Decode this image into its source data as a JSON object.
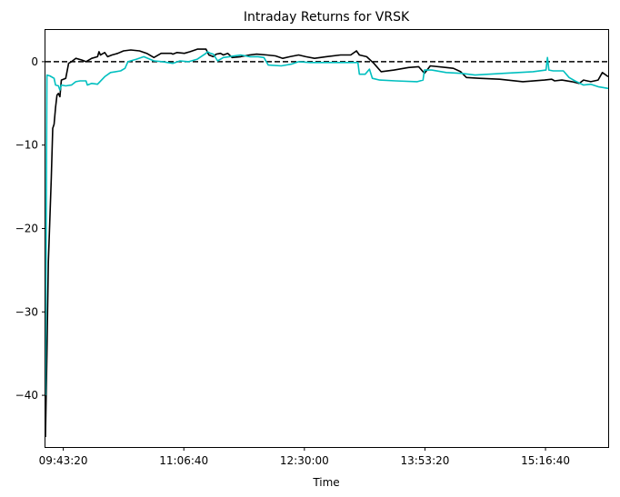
{
  "chart_data": {
    "type": "line",
    "title": "Intraday Returns for VRSK",
    "xlabel": "Time",
    "ylabel": "",
    "xlim": [
      "09:31:00",
      "16:00:00"
    ],
    "ylim": [
      -46.2,
      3.8
    ],
    "x_ticks": [
      "09:43:20",
      "11:06:40",
      "12:30:00",
      "13:53:20",
      "15:16:40"
    ],
    "y_ticks": [
      0,
      -10,
      -20,
      -30,
      -40
    ],
    "y_tick_labels": [
      "0",
      "−10",
      "−20",
      "−30",
      "−40"
    ],
    "grid": false,
    "reference_line": {
      "y": 0,
      "style": "dashed",
      "color": "#000000"
    },
    "series": [
      {
        "color": "#000000",
        "points": [
          [
            "09:31:00",
            -45.0
          ],
          [
            "09:32:00",
            -35.0
          ],
          [
            "09:33:00",
            -24.0
          ],
          [
            "09:35:00",
            -14.0
          ],
          [
            "09:36:00",
            -8.0
          ],
          [
            "09:37:00",
            -7.5
          ],
          [
            "09:38:00",
            -5.5
          ],
          [
            "09:39:00",
            -4.0
          ],
          [
            "09:40:00",
            -3.8
          ],
          [
            "09:41:00",
            -4.2
          ],
          [
            "09:42:00",
            -2.2
          ],
          [
            "09:45:00",
            -2.0
          ],
          [
            "09:47:00",
            -0.2
          ],
          [
            "09:49:00",
            0.0
          ],
          [
            "09:52:00",
            0.4
          ],
          [
            "09:56:00",
            0.2
          ],
          [
            "09:59:00",
            0.0
          ],
          [
            "10:03:00",
            0.4
          ],
          [
            "10:07:00",
            0.6
          ],
          [
            "10:08:00",
            1.2
          ],
          [
            "10:09:00",
            0.8
          ],
          [
            "10:11:00",
            1.0
          ],
          [
            "10:12:00",
            1.1
          ],
          [
            "10:14:00",
            0.6
          ],
          [
            "10:17:00",
            0.8
          ],
          [
            "10:21:00",
            1.0
          ],
          [
            "10:25:00",
            1.3
          ],
          [
            "10:30:00",
            1.4
          ],
          [
            "10:36:00",
            1.3
          ],
          [
            "10:41:00",
            1.0
          ],
          [
            "10:46:00",
            0.5
          ],
          [
            "10:51:00",
            1.0
          ],
          [
            "10:58:00",
            1.0
          ],
          [
            "10:59:00",
            0.9
          ],
          [
            "11:02:00",
            1.1
          ],
          [
            "11:07:00",
            1.0
          ],
          [
            "11:11:00",
            1.2
          ],
          [
            "11:16:00",
            1.5
          ],
          [
            "11:22:00",
            1.5
          ],
          [
            "11:24:00",
            0.8
          ],
          [
            "11:27:00",
            0.6
          ],
          [
            "11:29:00",
            0.9
          ],
          [
            "11:32:00",
            1.0
          ],
          [
            "11:34:00",
            0.8
          ],
          [
            "11:37:00",
            1.0
          ],
          [
            "11:40:00",
            0.5
          ],
          [
            "11:46:00",
            0.6
          ],
          [
            "11:52:00",
            0.8
          ],
          [
            "11:57:00",
            0.9
          ],
          [
            "12:04:00",
            0.8
          ],
          [
            "12:10:00",
            0.7
          ],
          [
            "12:15:00",
            0.4
          ],
          [
            "12:20:00",
            0.6
          ],
          [
            "12:26:00",
            0.8
          ],
          [
            "12:31:00",
            0.6
          ],
          [
            "12:37:00",
            0.4
          ],
          [
            "12:45:00",
            0.6
          ],
          [
            "12:55:00",
            0.8
          ],
          [
            "13:02:00",
            0.8
          ],
          [
            "13:06:00",
            1.3
          ],
          [
            "13:08:00",
            0.8
          ],
          [
            "13:13:00",
            0.6
          ],
          [
            "13:18:00",
            -0.2
          ],
          [
            "13:23:00",
            -1.2
          ],
          [
            "13:32:00",
            -1.0
          ],
          [
            "13:42:00",
            -0.7
          ],
          [
            "13:49:00",
            -0.6
          ],
          [
            "13:53:00",
            -1.4
          ],
          [
            "13:57:00",
            -0.5
          ],
          [
            "14:08:00",
            -0.7
          ],
          [
            "14:13:00",
            -0.8
          ],
          [
            "14:18:00",
            -1.2
          ],
          [
            "14:22:00",
            -1.9
          ],
          [
            "14:31:00",
            -2.0
          ],
          [
            "14:45:00",
            -2.1
          ],
          [
            "15:01:00",
            -2.4
          ],
          [
            "15:16:00",
            -2.2
          ],
          [
            "15:21:00",
            -2.1
          ],
          [
            "15:23:00",
            -2.3
          ],
          [
            "15:28:00",
            -2.2
          ],
          [
            "15:35:00",
            -2.4
          ],
          [
            "15:40:00",
            -2.6
          ],
          [
            "15:43:00",
            -2.2
          ],
          [
            "15:48:00",
            -2.4
          ],
          [
            "15:53:00",
            -2.2
          ],
          [
            "15:56:00",
            -1.3
          ],
          [
            "16:00:00",
            -1.8
          ]
        ]
      },
      {
        "color": "#00BFBF",
        "points": [
          [
            "09:31:00",
            -40.0
          ],
          [
            "09:32:00",
            -1.6
          ],
          [
            "09:34:00",
            -1.7
          ],
          [
            "09:37:00",
            -2.0
          ],
          [
            "09:38:00",
            -2.8
          ],
          [
            "09:40:00",
            -2.9
          ],
          [
            "09:41:00",
            -3.4
          ],
          [
            "09:42:00",
            -2.8
          ],
          [
            "09:45:00",
            -2.9
          ],
          [
            "09:49:00",
            -2.8
          ],
          [
            "09:52:00",
            -2.4
          ],
          [
            "09:55:00",
            -2.3
          ],
          [
            "09:59:00",
            -2.3
          ],
          [
            "10:00:00",
            -2.8
          ],
          [
            "10:03:00",
            -2.6
          ],
          [
            "10:07:00",
            -2.7
          ],
          [
            "10:12:00",
            -1.8
          ],
          [
            "10:16:00",
            -1.3
          ],
          [
            "10:23:00",
            -1.1
          ],
          [
            "10:26:00",
            -0.8
          ],
          [
            "10:28:00",
            0.0
          ],
          [
            "10:34:00",
            0.3
          ],
          [
            "10:39:00",
            0.6
          ],
          [
            "10:46:00",
            0.1
          ],
          [
            "10:52:00",
            0.0
          ],
          [
            "10:59:00",
            -0.2
          ],
          [
            "11:04:00",
            0.1
          ],
          [
            "11:10:00",
            0.0
          ],
          [
            "11:16:00",
            0.3
          ],
          [
            "11:22:00",
            1.0
          ],
          [
            "11:23:00",
            1.2
          ],
          [
            "11:25:00",
            1.0
          ],
          [
            "11:27:00",
            0.9
          ],
          [
            "11:30:00",
            0.1
          ],
          [
            "11:34:00",
            0.5
          ],
          [
            "11:38:00",
            0.6
          ],
          [
            "11:46:00",
            0.8
          ],
          [
            "11:52:00",
            0.6
          ],
          [
            "11:58:00",
            0.6
          ],
          [
            "12:02:00",
            0.5
          ],
          [
            "12:05:00",
            -0.4
          ],
          [
            "12:14:00",
            -0.5
          ],
          [
            "12:21:00",
            -0.3
          ],
          [
            "12:26:00",
            0.0
          ],
          [
            "12:34:00",
            -0.1
          ],
          [
            "12:48:00",
            -0.1
          ],
          [
            "13:07:00",
            -0.1
          ],
          [
            "13:08:00",
            -1.5
          ],
          [
            "13:12:00",
            -1.5
          ],
          [
            "13:15:00",
            -0.9
          ],
          [
            "13:17:00",
            -2.0
          ],
          [
            "13:22:00",
            -2.2
          ],
          [
            "13:33:00",
            -2.3
          ],
          [
            "13:48:00",
            -2.4
          ],
          [
            "13:52:00",
            -2.2
          ],
          [
            "13:53:00",
            -1.0
          ],
          [
            "13:58:00",
            -1.0
          ],
          [
            "14:08:00",
            -1.3
          ],
          [
            "14:18:00",
            -1.4
          ],
          [
            "14:28:00",
            -1.6
          ],
          [
            "14:48:00",
            -1.4
          ],
          [
            "14:58:00",
            -1.3
          ],
          [
            "15:08:00",
            -1.2
          ],
          [
            "15:17:00",
            -1.0
          ],
          [
            "15:18:00",
            0.5
          ],
          [
            "15:19:00",
            -1.0
          ],
          [
            "15:22:00",
            -1.1
          ],
          [
            "15:29:00",
            -1.1
          ],
          [
            "15:33:00",
            -1.9
          ],
          [
            "15:37:00",
            -2.3
          ],
          [
            "15:43:00",
            -2.8
          ],
          [
            "15:48:00",
            -2.7
          ],
          [
            "15:53:00",
            -3.0
          ],
          [
            "16:00:00",
            -3.2
          ]
        ]
      }
    ]
  }
}
